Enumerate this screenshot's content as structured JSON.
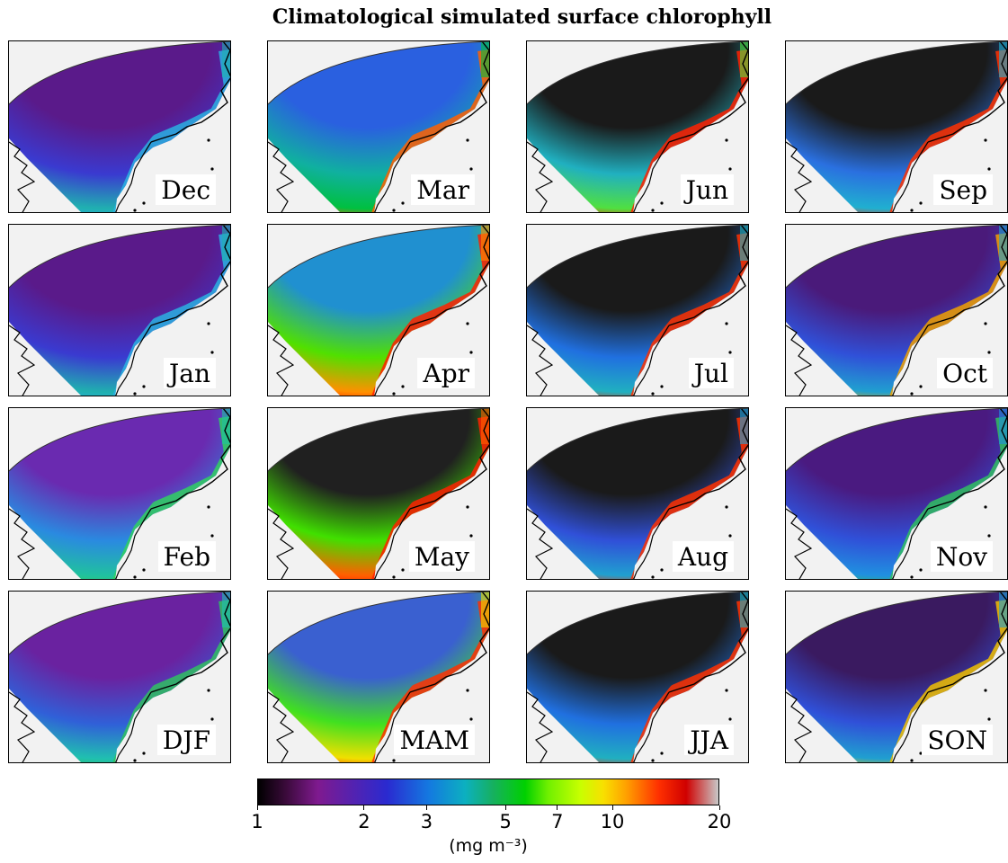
{
  "title": "Climatological simulated surface chlorophyll",
  "colors": {
    "land": "#f2f2f2",
    "coast": "#000000"
  },
  "chart_data": {
    "type": "heatmap",
    "title": "Climatological simulated surface chlorophyll",
    "panels": [
      {
        "label": "Dec",
        "offshore": "#5a1a8a",
        "mid": "#3a3ad0",
        "coastal": "#20b0b0",
        "ribbon": "#2ab0e0"
      },
      {
        "label": "Jan",
        "offshore": "#5a1a8a",
        "mid": "#3a3ad0",
        "coastal": "#20b0b0",
        "ribbon": "#2ab0e0"
      },
      {
        "label": "Feb",
        "offshore": "#6a2ab0",
        "mid": "#2a8ae0",
        "coastal": "#20c0a0",
        "ribbon": "#30d060"
      },
      {
        "label": "DJF",
        "offshore": "#6a22a0",
        "mid": "#3060d8",
        "coastal": "#20c0b0",
        "ribbon": "#30c060"
      },
      {
        "label": "Mar",
        "offshore": "#2a60e0",
        "mid": "#10b0a0",
        "coastal": "#00c040",
        "ribbon": "#ff6000"
      },
      {
        "label": "Apr",
        "offshore": "#2090d0",
        "mid": "#50e000",
        "coastal": "#ff9000",
        "ribbon": "#ff2000"
      },
      {
        "label": "May",
        "offshore": "#202020",
        "mid": "#40e000",
        "coastal": "#ff6000",
        "ribbon": "#ff2000"
      },
      {
        "label": "MAM",
        "offshore": "#3a60d0",
        "mid": "#40e020",
        "coastal": "#f0e000",
        "ribbon": "#ff3000"
      },
      {
        "label": "Jun",
        "offshore": "#1a1a1a",
        "mid": "#20b0c0",
        "coastal": "#50e040",
        "ribbon": "#ff2000"
      },
      {
        "label": "Jul",
        "offshore": "#1a1a1a",
        "mid": "#2070e0",
        "coastal": "#20b0c0",
        "ribbon": "#ff3000"
      },
      {
        "label": "Aug",
        "offshore": "#1a1a1a",
        "mid": "#3050d8",
        "coastal": "#20a0d0",
        "ribbon": "#ff3000"
      },
      {
        "label": "JJA",
        "offshore": "#1a1a1a",
        "mid": "#2070e0",
        "coastal": "#20b0c0",
        "ribbon": "#ff3000"
      },
      {
        "label": "Sep",
        "offshore": "#1a1a1a",
        "mid": "#2a70e0",
        "coastal": "#20b0d0",
        "ribbon": "#ff3000"
      },
      {
        "label": "Oct",
        "offshore": "#4a1a7a",
        "mid": "#3050d8",
        "coastal": "#20a0d0",
        "ribbon": "#f0a000"
      },
      {
        "label": "Nov",
        "offshore": "#4a1a80",
        "mid": "#3050d8",
        "coastal": "#2090e0",
        "ribbon": "#30c060"
      },
      {
        "label": "SON",
        "offshore": "#3a1a60",
        "mid": "#3050d8",
        "coastal": "#20a0d0",
        "ribbon": "#f0c000"
      }
    ],
    "colorbar": {
      "scale": "log",
      "range": [
        1,
        20
      ],
      "ticks": [
        1,
        2,
        3,
        5,
        7,
        10,
        20
      ],
      "tick_labels": [
        "1",
        "2",
        "3",
        "5",
        "7",
        "10",
        "20"
      ],
      "unit_label": "(mg m⁻³)"
    }
  }
}
